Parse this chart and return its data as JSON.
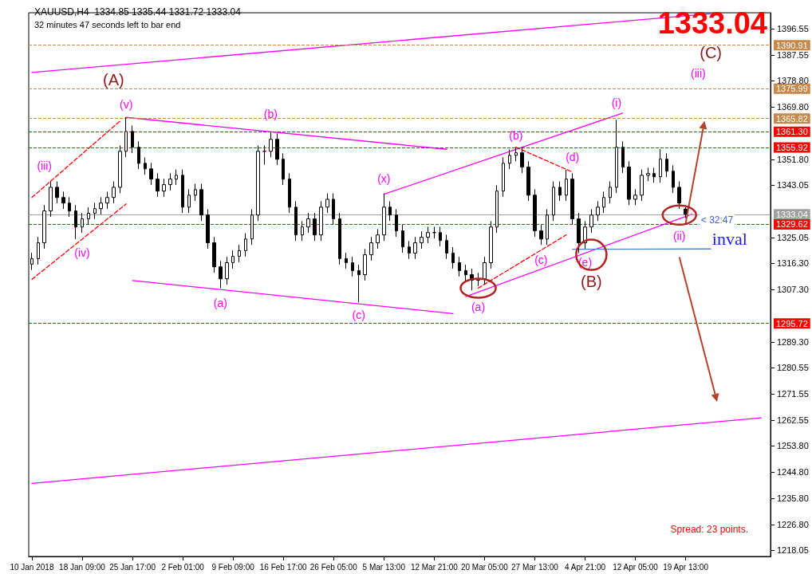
{
  "chart_data": {
    "type": "candlestick",
    "title": "XAUUSD,H4  1334.85 1335.44 1331.72 1333.04",
    "subtitle": "32 minutes 47 seconds left to bar end",
    "color": "#000000",
    "categories": [
      "10 Jan 2018",
      null,
      null,
      null,
      null,
      null,
      null,
      null,
      "18 Jan 09:00",
      null,
      null,
      null,
      null,
      null,
      null,
      null,
      "25 Jan 17:00",
      null,
      null,
      null,
      null,
      null,
      null,
      null,
      "2 Feb 01:00",
      null,
      null,
      null,
      null,
      null,
      null,
      null,
      "9 Feb 09:00",
      null,
      null,
      null,
      null,
      null,
      null,
      null,
      "16 Feb 17:00",
      null,
      null,
      null,
      null,
      null,
      null,
      null,
      "26 Feb 05:00",
      null,
      null,
      null,
      null,
      null,
      null,
      null,
      "5 Mar 13:00",
      null,
      null,
      null,
      null,
      null,
      null,
      null,
      "12 Mar 21:00",
      null,
      null,
      null,
      null,
      null,
      null,
      null,
      "20 Mar 05:00",
      null,
      null,
      null,
      null,
      null,
      null,
      null,
      "27 Mar 13:00",
      null,
      null,
      null,
      null,
      null,
      null,
      null,
      "4 Apr 21:00",
      null,
      null,
      null,
      null,
      null,
      null,
      null,
      "12 Apr 05:00",
      null,
      null,
      null,
      null,
      null,
      null,
      null,
      "19 Apr 13:00",
      null,
      null,
      null,
      null,
      null,
      null,
      null,
      null,
      null,
      null,
      null,
      null,
      null
    ],
    "ohlc": [
      [
        1316.0,
        1319.9,
        1314.0,
        1317.9
      ],
      [
        1317.9,
        1325.3,
        1315.9,
        1323.3
      ],
      [
        1323.3,
        1336.2,
        1321.3,
        1334.2
      ],
      [
        1334.2,
        1344.3,
        1332.2,
        1342.3
      ],
      [
        1342.3,
        1344.3,
        1336.8,
        1338.8
      ],
      [
        1338.8,
        1340.8,
        1334.9,
        1336.9
      ],
      [
        1336.9,
        1338.9,
        1332.2,
        1334.2
      ],
      [
        1334.2,
        1336.2,
        1324.6,
        1328.7
      ],
      [
        1328.7,
        1333.5,
        1326.7,
        1331.5
      ],
      [
        1331.5,
        1335.4,
        1329.5,
        1333.4
      ],
      [
        1333.4,
        1337.0,
        1331.4,
        1335.0
      ],
      [
        1335.0,
        1338.9,
        1333.0,
        1336.9
      ],
      [
        1336.9,
        1340.8,
        1334.9,
        1338.8
      ],
      [
        1338.8,
        1344.3,
        1336.8,
        1342.3
      ],
      [
        1342.3,
        1356.6,
        1340.3,
        1354.6
      ],
      [
        1354.6,
        1366.3,
        1352.6,
        1361.4
      ],
      [
        1361.4,
        1363.4,
        1354.0,
        1356.0
      ],
      [
        1356.0,
        1358.0,
        1348.5,
        1350.5
      ],
      [
        1350.5,
        1352.5,
        1346.6,
        1348.6
      ],
      [
        1348.6,
        1350.6,
        1343.1,
        1345.1
      ],
      [
        1345.1,
        1347.1,
        1339.0,
        1341.0
      ],
      [
        1341.0,
        1345.2,
        1339.0,
        1343.2
      ],
      [
        1343.2,
        1347.1,
        1341.2,
        1345.1
      ],
      [
        1345.1,
        1348.4,
        1343.1,
        1346.4
      ],
      [
        1346.4,
        1348.4,
        1333.5,
        1335.5
      ],
      [
        1335.5,
        1341.6,
        1333.5,
        1339.6
      ],
      [
        1339.6,
        1343.5,
        1337.6,
        1341.5
      ],
      [
        1341.5,
        1343.5,
        1330.8,
        1332.8
      ],
      [
        1332.8,
        1334.8,
        1321.3,
        1323.3
      ],
      [
        1323.3,
        1325.3,
        1313.1,
        1315.1
      ],
      [
        1315.1,
        1317.1,
        1307.8,
        1311.0
      ],
      [
        1311.0,
        1318.5,
        1309.0,
        1316.5
      ],
      [
        1316.5,
        1320.7,
        1314.5,
        1318.7
      ],
      [
        1318.7,
        1322.6,
        1316.7,
        1320.6
      ],
      [
        1320.6,
        1326.6,
        1318.6,
        1324.6
      ],
      [
        1324.6,
        1334.8,
        1322.6,
        1332.8
      ],
      [
        1332.8,
        1356.6,
        1330.8,
        1354.6
      ],
      [
        1354.6,
        1356.6,
        1350.0,
        1354.6
      ],
      [
        1354.6,
        1361.4,
        1352.6,
        1358.7
      ],
      [
        1358.7,
        1360.7,
        1349.9,
        1351.9
      ],
      [
        1351.9,
        1353.9,
        1343.1,
        1345.1
      ],
      [
        1345.1,
        1347.1,
        1333.5,
        1335.5
      ],
      [
        1335.5,
        1337.5,
        1324.0,
        1326.0
      ],
      [
        1326.0,
        1330.7,
        1324.0,
        1328.7
      ],
      [
        1328.7,
        1333.5,
        1326.7,
        1331.5
      ],
      [
        1331.5,
        1333.5,
        1324.0,
        1326.0
      ],
      [
        1326.0,
        1337.5,
        1324.0,
        1335.5
      ],
      [
        1335.5,
        1340.2,
        1333.5,
        1338.2
      ],
      [
        1338.2,
        1340.2,
        1329.5,
        1331.5
      ],
      [
        1331.5,
        1333.5,
        1315.9,
        1317.9
      ],
      [
        1317.9,
        1319.9,
        1314.5,
        1316.5
      ],
      [
        1316.5,
        1318.5,
        1311.8,
        1313.8
      ],
      [
        1313.8,
        1315.8,
        1302.9,
        1312.4
      ],
      [
        1312.4,
        1321.2,
        1310.4,
        1319.2
      ],
      [
        1319.2,
        1325.3,
        1317.2,
        1323.3
      ],
      [
        1323.3,
        1328.0,
        1321.3,
        1326.0
      ],
      [
        1326.0,
        1340.2,
        1324.0,
        1335.5
      ],
      [
        1335.5,
        1337.5,
        1330.8,
        1332.8
      ],
      [
        1332.8,
        1334.8,
        1325.4,
        1327.4
      ],
      [
        1327.4,
        1329.4,
        1319.9,
        1321.9
      ],
      [
        1321.9,
        1323.9,
        1317.8,
        1319.8
      ],
      [
        1319.8,
        1325.3,
        1317.8,
        1323.3
      ],
      [
        1323.3,
        1327.2,
        1321.3,
        1325.2
      ],
      [
        1325.2,
        1328.8,
        1323.2,
        1326.8
      ],
      [
        1326.8,
        1328.8,
        1324.8,
        1326.8
      ],
      [
        1326.8,
        1328.8,
        1322.1,
        1324.1
      ],
      [
        1324.1,
        1326.1,
        1317.8,
        1319.8
      ],
      [
        1319.8,
        1321.8,
        1314.5,
        1316.5
      ],
      [
        1316.5,
        1318.5,
        1311.8,
        1313.8
      ],
      [
        1313.8,
        1315.8,
        1310.4,
        1312.4
      ],
      [
        1312.4,
        1314.4,
        1307.0,
        1310.5
      ],
      [
        1310.5,
        1313.0,
        1308.5,
        1311.0
      ],
      [
        1311.0,
        1318.5,
        1309.0,
        1316.5
      ],
      [
        1316.5,
        1330.7,
        1314.5,
        1328.7
      ],
      [
        1328.7,
        1343.0,
        1326.7,
        1341.0
      ],
      [
        1341.0,
        1352.5,
        1339.0,
        1350.5
      ],
      [
        1350.5,
        1355.2,
        1348.5,
        1353.2
      ],
      [
        1353.2,
        1356.0,
        1351.2,
        1354.1
      ],
      [
        1354.1,
        1356.1,
        1347.2,
        1349.2
      ],
      [
        1349.2,
        1351.2,
        1337.6,
        1339.6
      ],
      [
        1339.6,
        1341.6,
        1325.4,
        1327.4
      ],
      [
        1327.4,
        1329.4,
        1322.6,
        1324.6
      ],
      [
        1324.6,
        1334.8,
        1322.6,
        1332.8
      ],
      [
        1332.8,
        1344.3,
        1330.8,
        1342.3
      ],
      [
        1342.3,
        1344.3,
        1337.6,
        1339.6
      ],
      [
        1339.6,
        1348.3,
        1337.6,
        1345.1
      ],
      [
        1345.1,
        1347.1,
        1329.5,
        1331.5
      ],
      [
        1331.5,
        1333.5,
        1319.8,
        1323.3
      ],
      [
        1323.3,
        1330.7,
        1321.3,
        1328.7
      ],
      [
        1328.7,
        1334.8,
        1326.7,
        1332.8
      ],
      [
        1332.8,
        1337.5,
        1330.8,
        1335.5
      ],
      [
        1335.5,
        1340.8,
        1333.5,
        1338.8
      ],
      [
        1338.8,
        1344.3,
        1336.8,
        1342.3
      ],
      [
        1342.3,
        1365.4,
        1340.3,
        1356.0
      ],
      [
        1356.0,
        1358.0,
        1347.2,
        1349.2
      ],
      [
        1349.2,
        1351.2,
        1336.2,
        1338.2
      ],
      [
        1338.2,
        1341.6,
        1336.2,
        1339.6
      ],
      [
        1339.6,
        1348.4,
        1337.6,
        1346.4
      ],
      [
        1346.4,
        1349.0,
        1344.4,
        1347.0
      ],
      [
        1347.0,
        1349.0,
        1343.9,
        1345.9
      ],
      [
        1345.9,
        1355.3,
        1343.9,
        1351.9
      ],
      [
        1351.9,
        1353.9,
        1345.8,
        1347.8
      ],
      [
        1347.8,
        1349.8,
        1340.3,
        1342.3
      ],
      [
        1342.3,
        1344.3,
        1334.9,
        1336.9
      ],
      [
        1334.85,
        1335.44,
        1331.72,
        1333.04
      ],
      null,
      null,
      null,
      null,
      null,
      null,
      null,
      null,
      null,
      null,
      null,
      null,
      null
    ],
    "ylim": [
      1216,
      1402
    ],
    "yticks": [
      1396.55,
      1387.55,
      {
        "value": 1378.8,
        "label": "1378.80"
      },
      {
        "value": 1369.8,
        "label": "1369.80"
      },
      {
        "value": 1351.8,
        "label": "1351.80"
      },
      1343.05,
      1325.05,
      {
        "value": 1316.3,
        "label": "1316.30"
      },
      {
        "value": 1307.3,
        "label": "1307.30"
      },
      {
        "value": 1289.3,
        "label": "1289.30"
      },
      1280.55,
      1271.55,
      1262.55,
      {
        "value": 1253.8,
        "label": "1253.80"
      },
      {
        "value": 1244.8,
        "label": "1244.80"
      },
      {
        "value": 1235.8,
        "label": "1235.80"
      },
      {
        "value": 1226.8,
        "label": "1226.80"
      },
      1218.05
    ],
    "series": [
      {
        "type": "line",
        "color": "#ff00ff",
        "line_style": "solid",
        "values": [
          1381.6,
          null,
          null,
          null,
          null,
          null,
          null,
          null,
          null,
          null,
          null,
          null,
          null,
          null,
          null,
          null,
          null,
          null,
          null,
          null,
          null,
          null,
          null,
          null,
          null,
          null,
          null,
          null,
          null,
          null,
          null,
          null,
          null,
          null,
          null,
          null,
          null,
          null,
          null,
          null,
          null,
          null,
          null,
          null,
          null,
          null,
          null,
          null,
          null,
          null,
          null,
          null,
          null,
          null,
          null,
          null,
          null,
          null,
          null,
          null,
          null,
          null,
          null,
          null,
          null,
          null,
          null,
          null,
          null,
          null,
          null,
          null,
          null,
          null,
          null,
          null,
          null,
          null,
          null,
          null,
          null,
          null,
          null,
          null,
          null,
          null,
          null,
          null,
          null,
          null,
          null,
          null,
          null,
          null,
          null,
          null,
          null,
          null,
          null,
          null,
          null,
          null,
          null,
          null,
          null,
          null,
          null,
          null,
          1401.7,
          null,
          null,
          null,
          null,
          null,
          null,
          null,
          null,
          null
        ]
      },
      {
        "type": "line",
        "color": "#ff00ff",
        "line_style": "solid",
        "values": [
          1241.0,
          null,
          null,
          null,
          null,
          null,
          null,
          null,
          null,
          null,
          null,
          null,
          null,
          null,
          null,
          null,
          null,
          null,
          null,
          null,
          null,
          null,
          null,
          null,
          null,
          null,
          null,
          null,
          null,
          null,
          null,
          null,
          null,
          null,
          null,
          null,
          null,
          null,
          null,
          null,
          null,
          null,
          null,
          null,
          null,
          null,
          null,
          null,
          null,
          null,
          null,
          null,
          null,
          null,
          null,
          null,
          null,
          null,
          null,
          null,
          null,
          null,
          null,
          null,
          null,
          null,
          null,
          null,
          null,
          null,
          null,
          null,
          null,
          null,
          null,
          null,
          null,
          null,
          null,
          null,
          null,
          null,
          null,
          null,
          null,
          null,
          null,
          null,
          null,
          null,
          null,
          null,
          null,
          null,
          null,
          null,
          null,
          null,
          null,
          null,
          null,
          null,
          null,
          null,
          null,
          null,
          null,
          null,
          null,
          null,
          null,
          null,
          null,
          null,
          null,
          null,
          1263.4,
          null
        ]
      },
      {
        "type": "line",
        "color": "#ff00ff",
        "line_style": "solid",
        "values": [
          null,
          null,
          null,
          null,
          null,
          null,
          null,
          null,
          null,
          null,
          null,
          null,
          null,
          null,
          null,
          1366.2,
          null,
          null,
          null,
          null,
          null,
          null,
          null,
          null,
          null,
          null,
          null,
          null,
          null,
          null,
          null,
          null,
          null,
          null,
          null,
          null,
          null,
          null,
          null,
          null,
          null,
          null,
          null,
          null,
          null,
          null,
          null,
          null,
          null,
          null,
          null,
          null,
          null,
          null,
          null,
          null,
          null,
          null,
          null,
          null,
          null,
          null,
          null,
          null,
          null,
          null,
          1355.3,
          null,
          null,
          null,
          null,
          null,
          null,
          null,
          null,
          null,
          null,
          null,
          null,
          null,
          null,
          null,
          null,
          null,
          null,
          null,
          null,
          null,
          null,
          null,
          null,
          null,
          null,
          null,
          null,
          null,
          null,
          null,
          null,
          null,
          null,
          null,
          null,
          null,
          null,
          null,
          null,
          null,
          null,
          null,
          null,
          null,
          null,
          null,
          null,
          null,
          null,
          null
        ]
      },
      {
        "type": "line",
        "color": "#ff00ff",
        "line_style": "solid",
        "values": [
          null,
          null,
          null,
          null,
          null,
          null,
          null,
          null,
          null,
          null,
          null,
          null,
          null,
          null,
          null,
          null,
          1310.4,
          null,
          null,
          null,
          null,
          null,
          null,
          null,
          null,
          null,
          null,
          null,
          null,
          null,
          null,
          null,
          null,
          null,
          null,
          null,
          null,
          null,
          null,
          null,
          null,
          null,
          null,
          null,
          null,
          null,
          null,
          null,
          null,
          null,
          null,
          null,
          null,
          null,
          null,
          null,
          null,
          null,
          null,
          null,
          null,
          null,
          null,
          null,
          null,
          null,
          null,
          1299.1,
          null,
          null,
          null,
          null,
          null,
          null,
          null,
          null,
          null,
          null,
          null,
          null,
          null,
          null,
          null,
          null,
          null,
          null,
          null,
          null,
          null,
          null,
          null,
          null,
          null,
          null,
          null,
          null,
          null,
          null,
          null,
          null,
          null,
          null,
          null,
          null,
          null,
          null,
          null,
          null,
          null,
          null,
          null,
          null,
          null,
          null,
          null,
          null,
          null,
          null
        ]
      },
      {
        "type": "line",
        "color": "#ff00ff",
        "line_style": "solid",
        "values": [
          null,
          null,
          null,
          null,
          null,
          null,
          null,
          null,
          null,
          null,
          null,
          null,
          null,
          null,
          null,
          null,
          null,
          null,
          null,
          null,
          null,
          null,
          null,
          null,
          null,
          null,
          null,
          null,
          null,
          null,
          null,
          null,
          null,
          null,
          null,
          null,
          null,
          null,
          null,
          null,
          null,
          null,
          null,
          null,
          null,
          null,
          null,
          null,
          null,
          null,
          null,
          null,
          null,
          null,
          null,
          null,
          1339.9,
          null,
          null,
          null,
          null,
          null,
          null,
          null,
          null,
          null,
          null,
          null,
          null,
          null,
          null,
          null,
          null,
          null,
          null,
          null,
          null,
          null,
          null,
          null,
          null,
          null,
          null,
          null,
          null,
          null,
          null,
          null,
          null,
          null,
          null,
          null,
          null,
          null,
          1367.7,
          null,
          null,
          null,
          null,
          null,
          null,
          null,
          null,
          null,
          null,
          null,
          null,
          null,
          null,
          null,
          null,
          null,
          null,
          null,
          null,
          null,
          null,
          null
        ]
      },
      {
        "type": "line",
        "color": "#ff00ff",
        "line_style": "solid",
        "values": [
          null,
          null,
          null,
          null,
          null,
          null,
          null,
          null,
          null,
          null,
          null,
          null,
          null,
          null,
          null,
          null,
          null,
          null,
          null,
          null,
          null,
          null,
          null,
          null,
          null,
          null,
          null,
          null,
          null,
          null,
          null,
          null,
          null,
          null,
          null,
          null,
          null,
          null,
          null,
          null,
          null,
          null,
          null,
          null,
          null,
          null,
          null,
          null,
          null,
          null,
          null,
          null,
          null,
          null,
          null,
          null,
          null,
          null,
          null,
          null,
          null,
          null,
          null,
          null,
          null,
          null,
          null,
          null,
          null,
          1304.9,
          null,
          null,
          null,
          null,
          null,
          null,
          null,
          null,
          null,
          null,
          null,
          null,
          null,
          null,
          null,
          null,
          null,
          null,
          null,
          null,
          null,
          null,
          null,
          null,
          null,
          null,
          null,
          null,
          null,
          null,
          null,
          null,
          null,
          null,
          null,
          1333.1,
          null,
          null,
          null,
          null,
          null,
          null,
          null,
          null,
          null,
          null,
          null,
          null
        ]
      },
      {
        "type": "line",
        "color": "#4a86c8",
        "line_style": "solid",
        "values": [
          null,
          null,
          null,
          null,
          null,
          null,
          null,
          null,
          null,
          null,
          null,
          null,
          null,
          null,
          null,
          null,
          null,
          null,
          null,
          null,
          null,
          null,
          null,
          null,
          null,
          null,
          null,
          null,
          null,
          null,
          null,
          null,
          null,
          null,
          null,
          null,
          null,
          null,
          null,
          null,
          null,
          null,
          null,
          null,
          null,
          null,
          null,
          null,
          null,
          null,
          null,
          null,
          null,
          null,
          null,
          null,
          null,
          null,
          null,
          null,
          null,
          null,
          null,
          null,
          null,
          null,
          null,
          null,
          null,
          null,
          null,
          null,
          null,
          null,
          null,
          null,
          null,
          null,
          null,
          null,
          null,
          null,
          null,
          null,
          null,
          null,
          1321.1,
          null,
          null,
          null,
          null,
          null,
          null,
          null,
          null,
          null,
          null,
          null,
          null,
          null,
          null,
          null,
          null,
          null,
          null,
          null,
          null,
          null,
          1321.2,
          null,
          null,
          null,
          null,
          null,
          null,
          null,
          null,
          null
        ]
      },
      {
        "type": "line",
        "color": "#ff0000",
        "line_style": "dashed",
        "values": [
          1338.8,
          null,
          null,
          null,
          null,
          null,
          null,
          null,
          null,
          null,
          null,
          null,
          null,
          null,
          1364.9,
          null,
          null,
          null,
          null,
          null,
          null,
          null,
          null,
          null,
          null,
          null,
          null,
          null,
          null,
          null,
          null,
          null,
          null,
          null,
          null,
          null,
          null,
          null,
          null,
          null,
          null,
          null,
          null,
          null,
          null,
          null,
          null,
          null,
          null,
          null,
          null,
          null,
          null,
          null,
          null,
          null,
          null,
          null,
          null,
          null,
          null,
          null,
          null,
          null,
          null,
          null,
          null,
          null,
          null,
          null,
          null,
          null,
          null,
          null,
          null,
          null,
          null,
          null,
          null,
          null,
          null,
          null,
          null,
          null,
          null,
          null,
          null,
          null,
          null,
          null,
          null,
          null,
          null,
          null,
          null,
          null,
          null,
          null,
          null,
          null,
          null,
          null,
          null,
          null,
          null,
          null,
          null,
          null,
          null,
          null,
          null,
          null,
          null,
          null,
          null,
          null,
          null,
          null
        ]
      },
      {
        "type": "line",
        "color": "#ff0000",
        "line_style": "dashed",
        "values": [
          1310.8,
          null,
          null,
          null,
          null,
          null,
          null,
          null,
          null,
          null,
          null,
          null,
          null,
          null,
          null,
          1336.6,
          null,
          null,
          null,
          null,
          null,
          null,
          null,
          null,
          null,
          null,
          null,
          null,
          null,
          null,
          null,
          null,
          null,
          null,
          null,
          null,
          null,
          null,
          null,
          null,
          null,
          null,
          null,
          null,
          null,
          null,
          null,
          null,
          null,
          null,
          null,
          null,
          null,
          null,
          null,
          null,
          null,
          null,
          null,
          null,
          null,
          null,
          null,
          null,
          null,
          null,
          null,
          null,
          null,
          null,
          null,
          null,
          null,
          null,
          null,
          null,
          null,
          null,
          null,
          null,
          null,
          null,
          null,
          null,
          null,
          null,
          null,
          null,
          null,
          null,
          null,
          null,
          null,
          null,
          null,
          null,
          null,
          null,
          null,
          null,
          null,
          null,
          null,
          null,
          null,
          null,
          null,
          null,
          null,
          null,
          null,
          null,
          null,
          null,
          null,
          null,
          null,
          null
        ]
      },
      {
        "type": "line",
        "color": "#ff0000",
        "line_style": "dashed",
        "values": [
          null,
          null,
          null,
          null,
          null,
          null,
          null,
          null,
          null,
          null,
          null,
          null,
          null,
          null,
          null,
          null,
          null,
          null,
          null,
          null,
          null,
          null,
          null,
          null,
          null,
          null,
          null,
          null,
          null,
          null,
          null,
          null,
          null,
          null,
          null,
          null,
          null,
          null,
          null,
          null,
          null,
          null,
          null,
          null,
          null,
          null,
          null,
          null,
          null,
          null,
          null,
          null,
          null,
          null,
          null,
          null,
          null,
          null,
          null,
          null,
          null,
          null,
          null,
          null,
          null,
          null,
          null,
          null,
          null,
          null,
          null,
          null,
          null,
          null,
          null,
          null,
          null,
          1356.0,
          null,
          null,
          null,
          null,
          null,
          null,
          null,
          null,
          1347.5,
          null,
          null,
          null,
          null,
          null,
          null,
          null,
          null,
          null,
          null,
          null,
          null,
          null,
          null,
          null,
          null,
          null,
          null,
          null,
          null,
          null,
          null,
          null,
          null,
          null,
          null,
          null,
          null,
          null,
          null,
          null
        ]
      },
      {
        "type": "line",
        "color": "#ff0000",
        "line_style": "dashed",
        "values": [
          null,
          null,
          null,
          null,
          null,
          null,
          null,
          null,
          null,
          null,
          null,
          null,
          null,
          null,
          null,
          null,
          null,
          null,
          null,
          null,
          null,
          null,
          null,
          null,
          null,
          null,
          null,
          null,
          null,
          null,
          null,
          null,
          null,
          null,
          null,
          null,
          null,
          null,
          null,
          null,
          null,
          null,
          null,
          null,
          null,
          null,
          null,
          null,
          null,
          null,
          null,
          null,
          null,
          null,
          null,
          null,
          null,
          null,
          null,
          null,
          null,
          null,
          null,
          null,
          null,
          null,
          null,
          null,
          null,
          null,
          null,
          1307.8,
          null,
          null,
          null,
          null,
          null,
          null,
          null,
          null,
          null,
          null,
          null,
          null,
          null,
          1326.0,
          null,
          null,
          null,
          null,
          null,
          null,
          null,
          null,
          null,
          null,
          null,
          null,
          null,
          null,
          null,
          null,
          null,
          null,
          null,
          null,
          null,
          null,
          null,
          null,
          null,
          null,
          null,
          null,
          null,
          null,
          null,
          null
        ]
      }
    ],
    "ref_lines": [
      {
        "axis": "y",
        "value": 1390.91,
        "label": "1390.91",
        "color": "#c8884a",
        "line_style": "dashed"
      },
      {
        "axis": "y",
        "value": 1375.99,
        "label": "1375.99",
        "color": "#c8884a",
        "line_style": "dashed"
      },
      {
        "axis": "y",
        "value": 1365.82,
        "label": "1365.82",
        "color": "#c8884a",
        "line_style": "dashed"
      },
      {
        "axis": "y",
        "value": 1361.3,
        "label": "1361.30",
        "color": "#ff0000",
        "line_style": "dashed"
      },
      {
        "axis": "y",
        "value": 1355.92,
        "label": "1355.92",
        "color": "#ff0000",
        "line_style": "dashed"
      },
      {
        "axis": "y",
        "value": 1333.04,
        "label": "1333.04",
        "color": "#a0a0a0",
        "line_style": "solid"
      },
      {
        "axis": "y",
        "value": 1329.62,
        "label": "1329.62",
        "color": "#ff0000",
        "line_style": "dashed"
      },
      {
        "axis": "y",
        "value": 1295.72,
        "label": "1295.72",
        "color": "#ff0000",
        "line_style": "dashed"
      }
    ],
    "annotations": [
      "1333.04",
      "Spread: 23 points.",
      "(A)",
      "(v)",
      "(iii)",
      "(iv)",
      "(a)",
      "(b)",
      "(c)",
      "(x)",
      "(a)",
      "(b)",
      "(c)",
      "(d)",
      "(e)",
      "(B)",
      "(i)",
      {
        "text": "(ii)",
        "y": 1331.72
      },
      "(iii)",
      "(C)",
      "inval",
      {
        "text": "< 32:47",
        "y": 1333.04
      }
    ],
    "grid": false
  }
}
